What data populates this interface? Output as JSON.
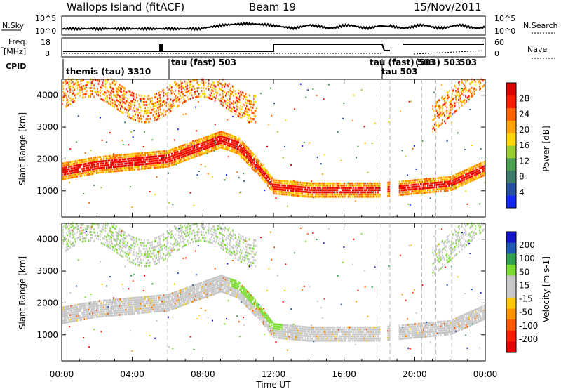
{
  "header": {
    "title": "Wallops Island (fitACF)",
    "beam": "Beam 19",
    "date": "15/Nov/2011"
  },
  "strips": {
    "nsky_label": "N.Sky",
    "nsky_ticks": [
      "10^5",
      "10^0"
    ],
    "nsearch_label": "N.Search",
    "nsearch_ticks": [
      "10^5",
      "10^0"
    ],
    "freq_label_1": "Freq.",
    "freq_label_2": "[MHz]",
    "freq_ticks": [
      "18",
      "8"
    ],
    "nave_label": "Nave",
    "nave_ticks": [
      "60",
      "0"
    ],
    "cpid_label": "CPID",
    "cpid_labels": [
      "themis (tau) 3310",
      "tau (fast) 503",
      "tau (fast) 503",
      "tau 503",
      "(503) 503",
      "503"
    ]
  },
  "panels": {
    "ylabel": "Slant Range [km]",
    "xlabel": "Time UT",
    "power_label": "Power [dB]",
    "velocity_label": "Velocity [m s-1]"
  },
  "chart_data": [
    {
      "type": "heatmap",
      "title": "Power",
      "xlabel": "Time UT",
      "ylabel": "Slant Range [km]",
      "x_ticks": [
        "00:00",
        "04:00",
        "08:00",
        "12:00",
        "16:00",
        "20:00",
        "00:00"
      ],
      "xlim": [
        0,
        24
      ],
      "ylim": [
        180,
        4500
      ],
      "y_ticks": [
        1000,
        2000,
        3000,
        4000
      ],
      "colorbar": {
        "label": "Power [dB]",
        "ticks": [
          4,
          8,
          12,
          16,
          20,
          24,
          28
        ],
        "colors": [
          "#1428ff",
          "#2850a0",
          "#3c7a6a",
          "#4aa050",
          "#9acd32",
          "#ffd700",
          "#ffa500",
          "#ff6400",
          "#ff1e00",
          "#e10000"
        ]
      },
      "main_echo_band_km": [
        [
          0,
          1600
        ],
        [
          2,
          1800
        ],
        [
          4,
          1900
        ],
        [
          6,
          2000
        ],
        [
          8,
          2400
        ],
        [
          9,
          2600
        ],
        [
          10,
          2400
        ],
        [
          11,
          1800
        ],
        [
          12,
          1100
        ],
        [
          14,
          1000
        ],
        [
          16,
          1000
        ],
        [
          18,
          1000
        ],
        [
          22,
          1200
        ],
        [
          24,
          1700
        ]
      ]
    },
    {
      "type": "heatmap",
      "title": "Velocity",
      "xlabel": "Time UT",
      "ylabel": "Slant Range [km]",
      "x_ticks": [
        "00:00",
        "04:00",
        "08:00",
        "12:00",
        "16:00",
        "20:00",
        "00:00"
      ],
      "xlim": [
        0,
        24
      ],
      "ylim": [
        180,
        4500
      ],
      "y_ticks": [
        1000,
        2000,
        3000,
        4000
      ],
      "colorbar": {
        "label": "Velocity [m s-1]",
        "ticks": [
          200,
          100,
          50,
          15,
          -15,
          -50,
          -100,
          -200
        ],
        "colors": [
          "#1414c8",
          "#1e5ab4",
          "#32a050",
          "#7ddc32",
          "#c8c8c8",
          "#c8c8c8",
          "#ffc800",
          "#ff9600",
          "#ff5a00",
          "#ff1e00",
          "#e60000"
        ]
      }
    }
  ]
}
